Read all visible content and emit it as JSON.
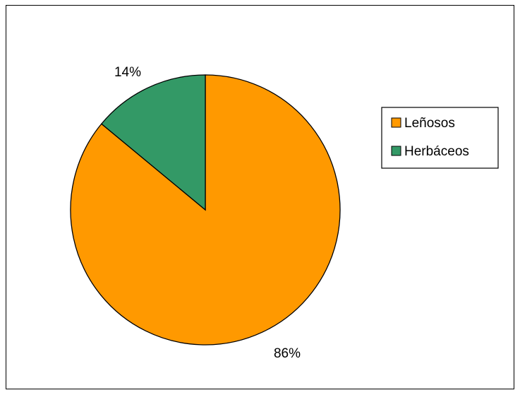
{
  "chart_data": {
    "type": "pie",
    "title": "",
    "categories": [
      "Leñosos",
      "Herbáceos"
    ],
    "values": [
      86,
      14
    ],
    "data_labels": [
      "86%",
      "14%"
    ],
    "colors": [
      "#FF9900",
      "#339966"
    ],
    "legend_position": "right"
  }
}
